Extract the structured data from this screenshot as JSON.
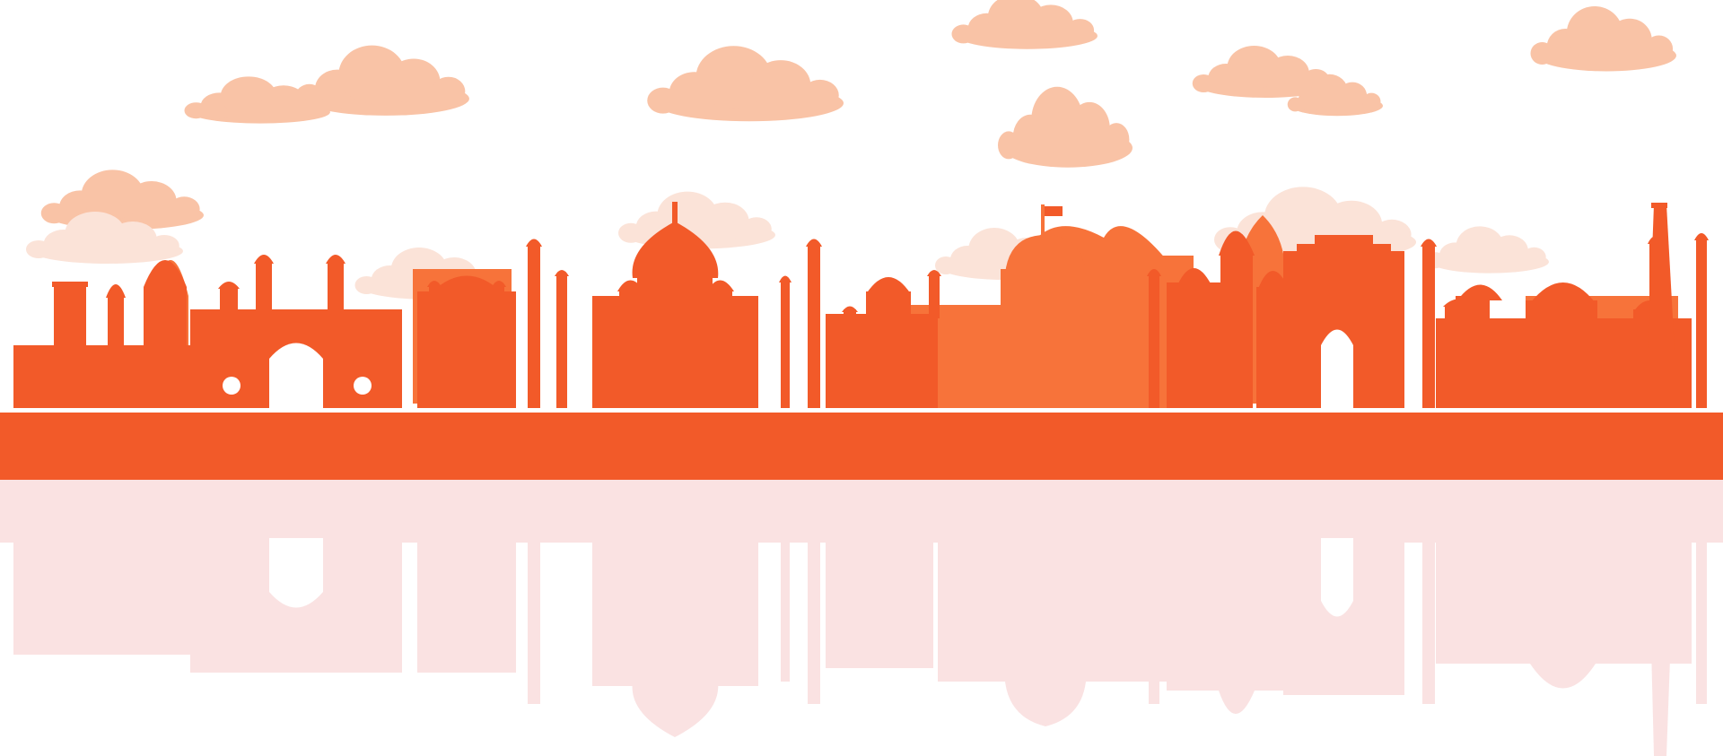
{
  "colors": {
    "background": "#ffffff",
    "cloud": "#f9c3a6",
    "cloud_faint": "#fbe3d8",
    "skyline_main": "#f25a29",
    "skyline_light": "#f7733a",
    "ground": "#f25a29",
    "reflection": "#f6cbcb",
    "reflection_light": "#fadcdc"
  },
  "landmarks": [
    {
      "name": "gateway-of-india"
    },
    {
      "name": "charminar"
    },
    {
      "name": "taj-mahal"
    },
    {
      "name": "rashtrapati-bhavan"
    },
    {
      "name": "india-gate"
    },
    {
      "name": "qutub-minar"
    }
  ]
}
